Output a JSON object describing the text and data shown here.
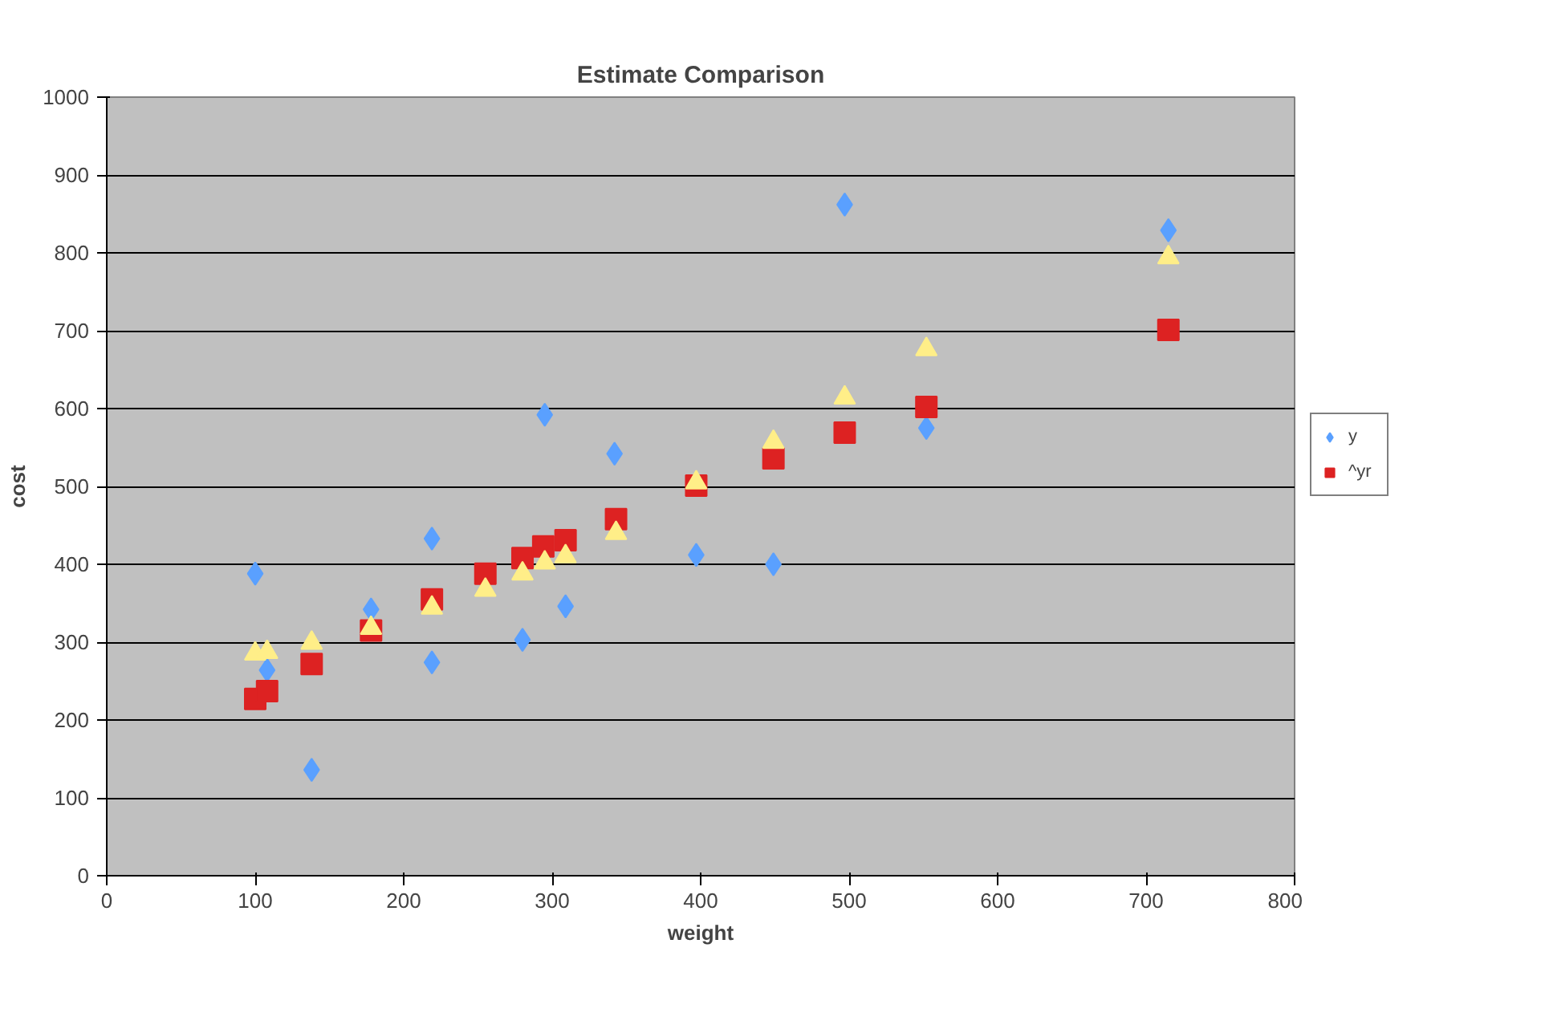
{
  "chart_data": {
    "type": "scatter",
    "title": "Estimate Comparison",
    "xlabel": "weight",
    "ylabel": "cost",
    "xlim": [
      0,
      800
    ],
    "xticks": [
      0,
      100,
      200,
      300,
      400,
      500,
      600,
      700,
      800
    ],
    "ylim": [
      0,
      1000
    ],
    "yticks": [
      0,
      100,
      200,
      300,
      400,
      500,
      600,
      700,
      800,
      900,
      1000
    ],
    "grid": "y",
    "legend": "right",
    "series": [
      {
        "name": "y",
        "color": "#5aa0ff",
        "marker": "diamond",
        "x": [
          100,
          108,
          138,
          178,
          219,
          219,
          280,
          295,
          309,
          342,
          397,
          449,
          497,
          552,
          715
        ],
        "values": [
          388,
          264,
          136,
          342,
          433,
          274,
          303,
          592,
          346,
          542,
          412,
          400,
          862,
          575,
          829
        ]
      },
      {
        "name": "^yr",
        "color": "#dd2222",
        "marker": "square",
        "x": [
          100,
          108,
          138,
          178,
          219,
          255,
          280,
          294,
          309,
          343,
          397,
          449,
          497,
          552,
          715
        ],
        "values": [
          227,
          237,
          272,
          315,
          355,
          388,
          408,
          423,
          431,
          458,
          501,
          536,
          569,
          602,
          701
        ]
      },
      {
        "color": "#ffee88",
        "marker": "triangle",
        "x": [
          100,
          108,
          138,
          178,
          219,
          255,
          280,
          295,
          309,
          343,
          397,
          449,
          497,
          552,
          715
        ],
        "values": [
          285,
          287,
          299,
          318,
          344,
          367,
          388,
          402,
          410,
          440,
          505,
          557,
          614,
          676,
          794
        ]
      }
    ]
  }
}
